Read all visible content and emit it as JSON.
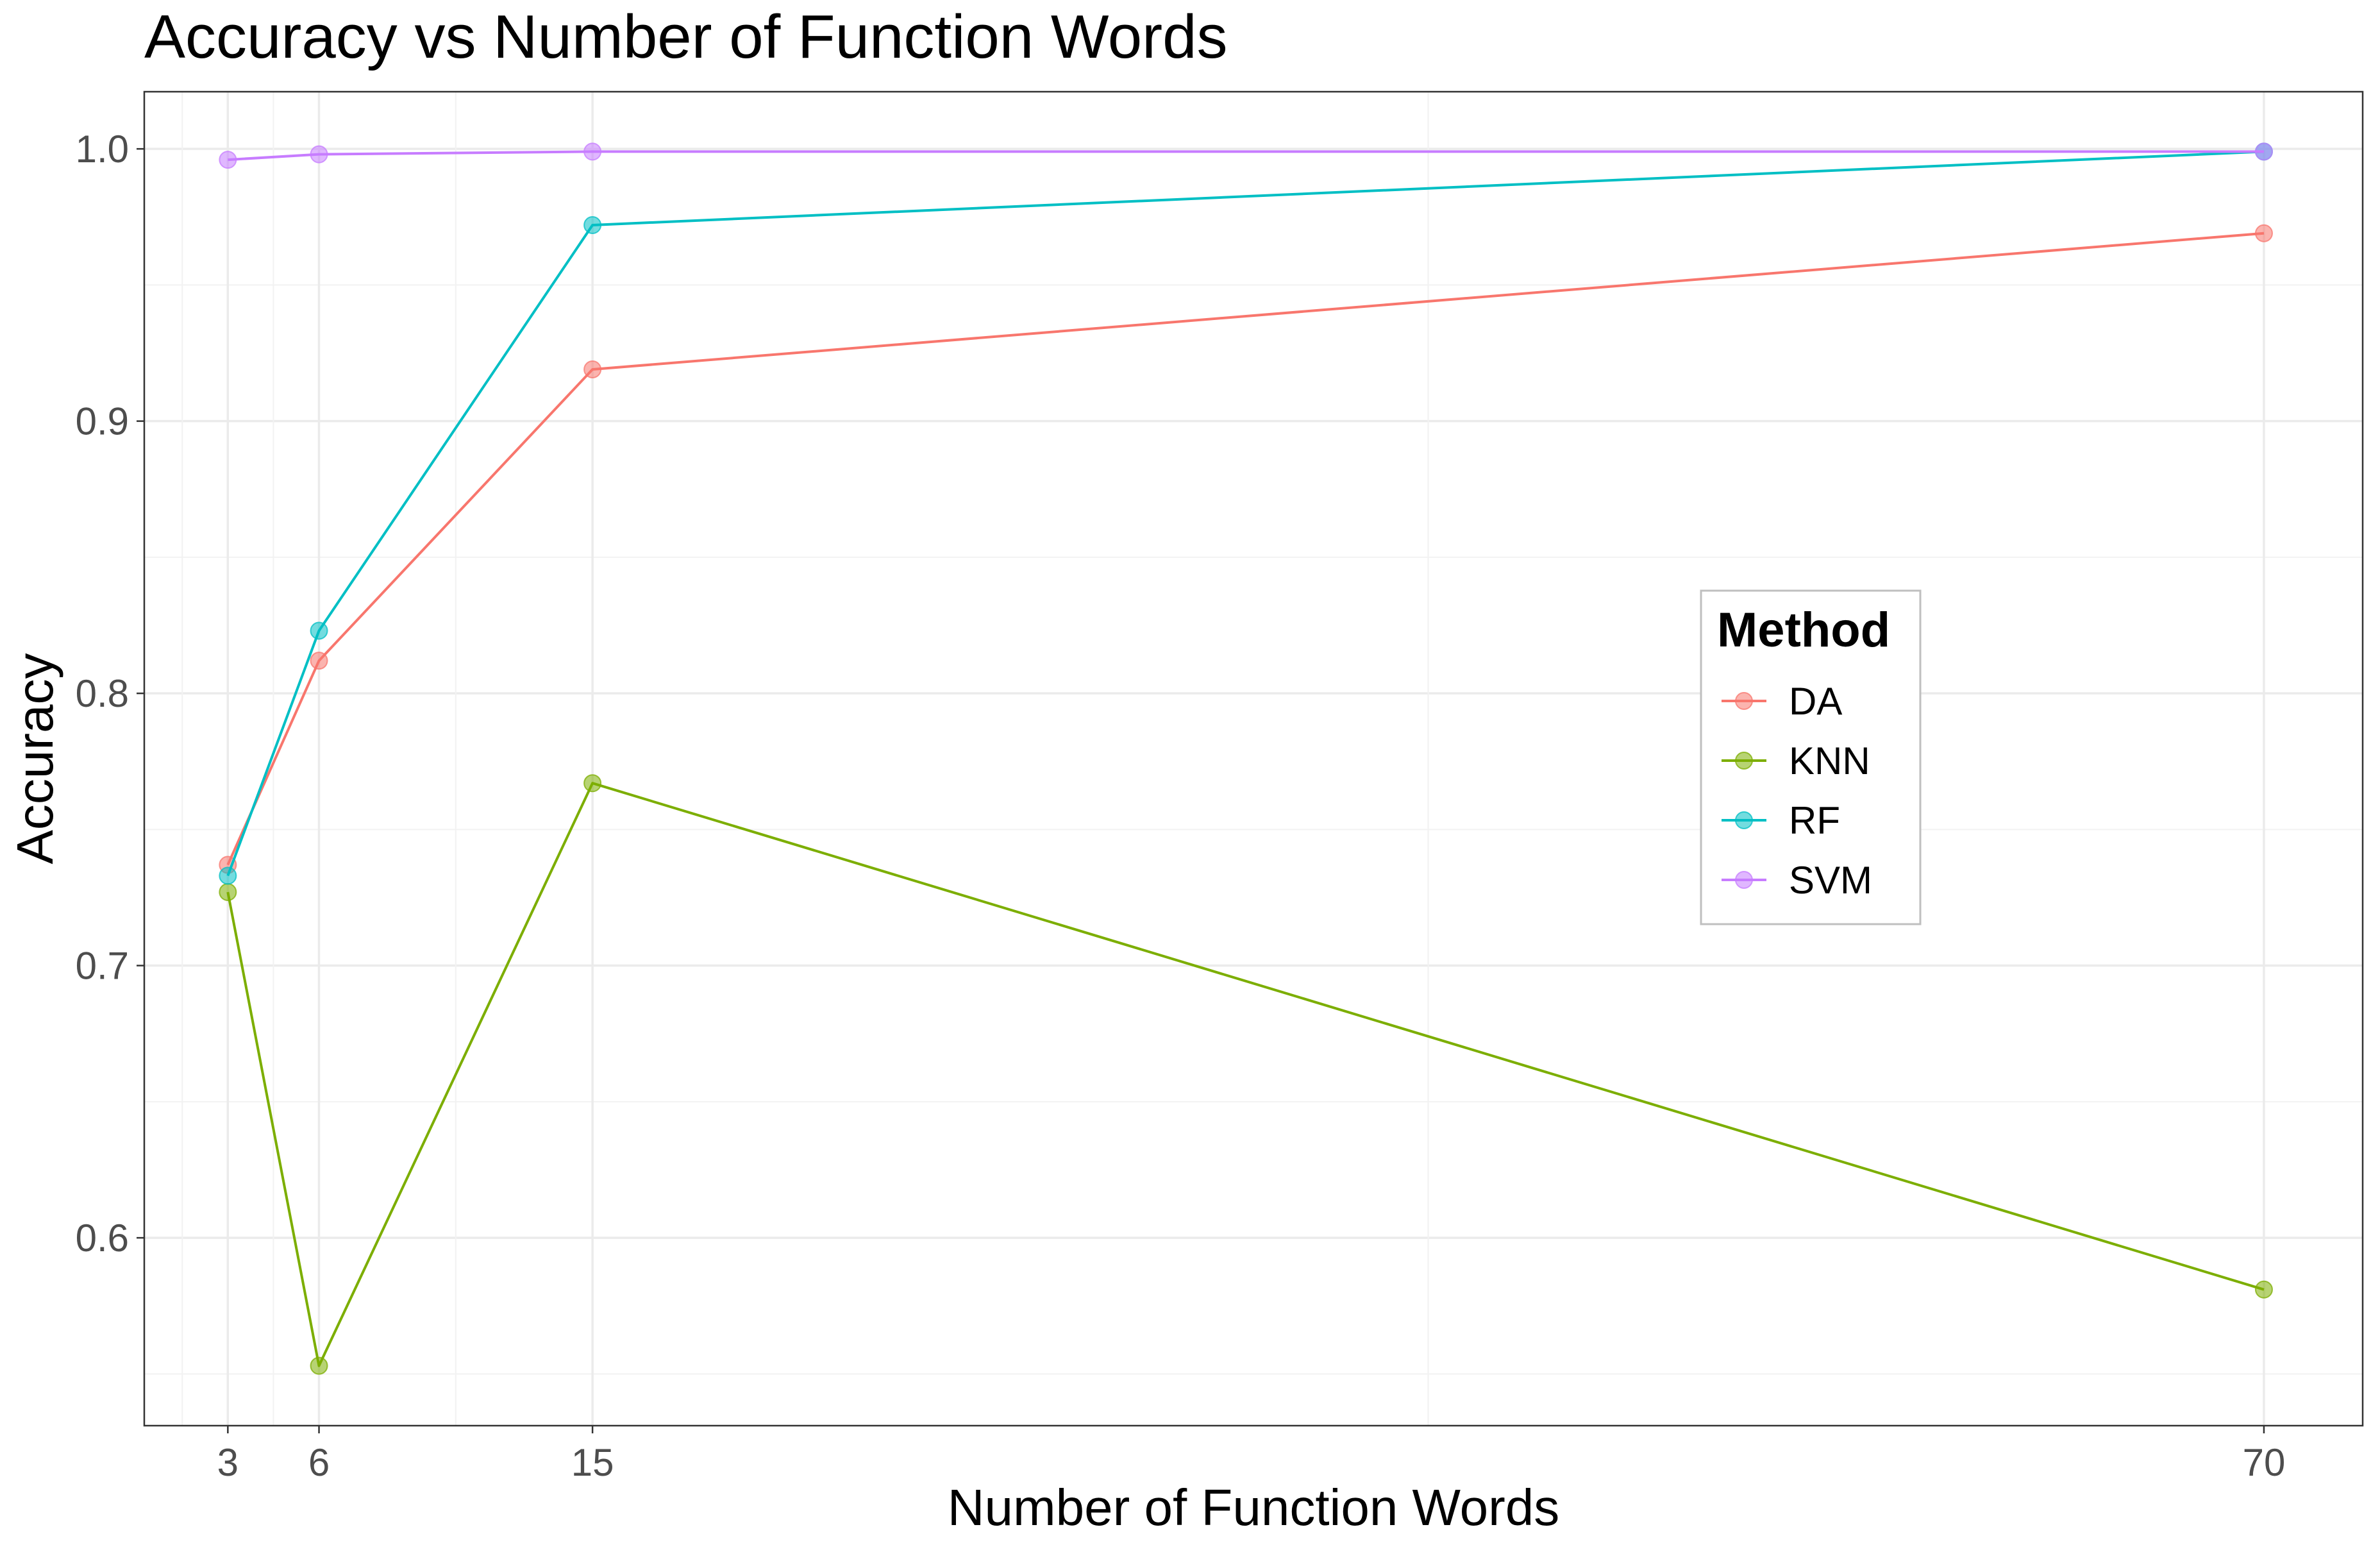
{
  "chart_data": {
    "type": "line",
    "title": "Accuracy vs Number of Function Words",
    "xlabel": "Number of Function Words",
    "ylabel": "Accuracy",
    "x": [
      3,
      6,
      15,
      70
    ],
    "x_ticks": [
      3,
      6,
      15,
      70
    ],
    "x_tick_labels": [
      "3",
      "6",
      "15",
      "70"
    ],
    "xlim": [
      0.25,
      73.25
    ],
    "y_ticks": [
      0.6,
      0.7,
      0.8,
      0.9,
      1.0
    ],
    "y_tick_labels": [
      "0.6",
      "0.7",
      "0.8",
      "0.9",
      "1.0"
    ],
    "ylim": [
      0.531,
      1.021
    ],
    "grid": true,
    "legend": {
      "title": "Method",
      "placement": "right-center"
    },
    "series": [
      {
        "name": "DA",
        "color": "#F8766D",
        "values": [
          0.737,
          0.812,
          0.919,
          0.969
        ]
      },
      {
        "name": "KNN",
        "color": "#7CAE00",
        "values": [
          0.727,
          0.553,
          0.767,
          0.581
        ]
      },
      {
        "name": "RF",
        "color": "#00BFC4",
        "values": [
          0.733,
          0.823,
          0.972,
          0.999
        ]
      },
      {
        "name": "SVM",
        "color": "#C77CFF",
        "values": [
          0.996,
          0.998,
          0.999,
          0.999
        ]
      }
    ]
  }
}
